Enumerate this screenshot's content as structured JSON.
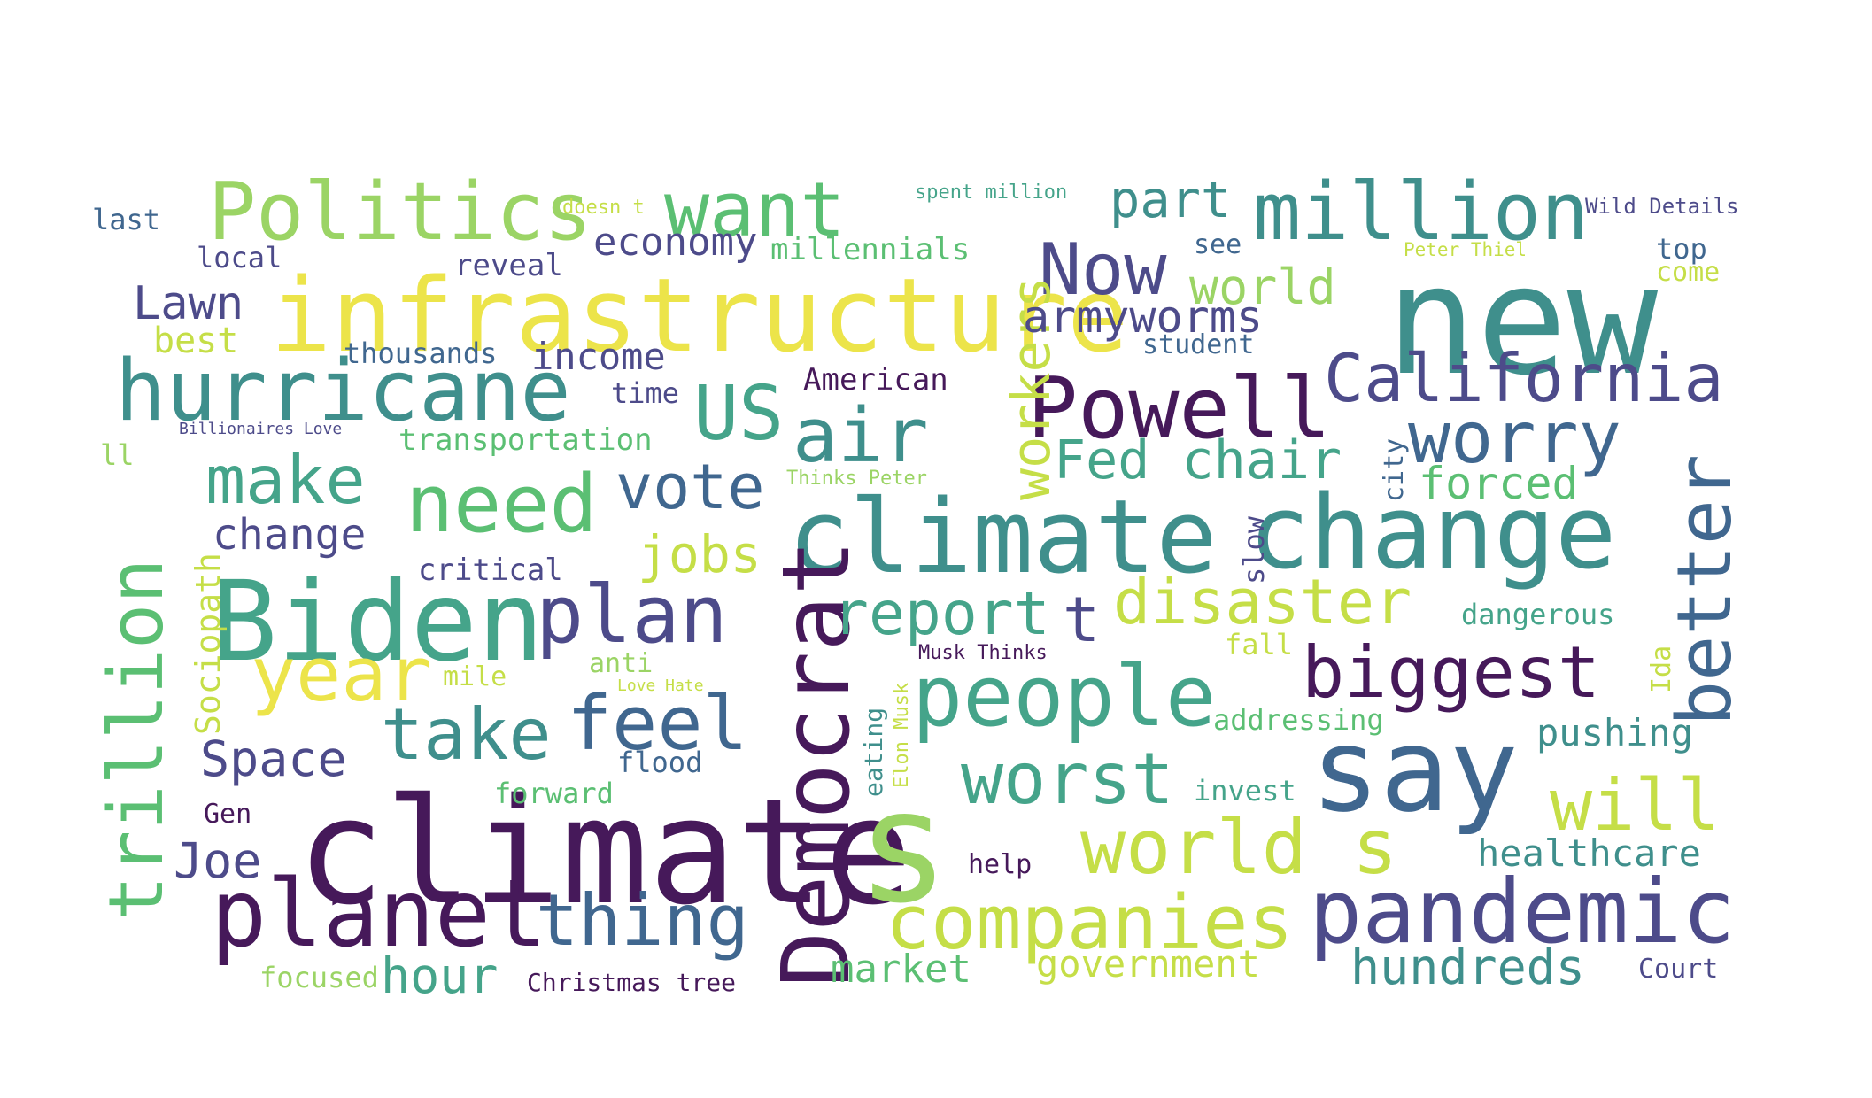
{
  "palette": {
    "purple": "#46195a",
    "indigo": "#4d4b8a",
    "blue": "#40678f",
    "teal": "#3f8f8c",
    "teal_light": "#45a48a",
    "green": "#5bbf73",
    "lime": "#9bd465",
    "yellow_green": "#c5de47",
    "yellow": "#ece44a"
  },
  "words": [
    {
      "text": "climate",
      "color": "purple"
    },
    {
      "text": "s",
      "color": "lime"
    },
    {
      "text": "new",
      "color": "teal"
    },
    {
      "text": "infrastructure",
      "color": "yellow"
    },
    {
      "text": "change",
      "color": "teal"
    },
    {
      "text": "climate",
      "color": "teal"
    },
    {
      "text": "say",
      "color": "blue"
    },
    {
      "text": "Biden",
      "color": "teal_light"
    },
    {
      "text": "Democrat",
      "color": "purple"
    },
    {
      "text": "pandemic",
      "color": "indigo"
    },
    {
      "text": "planet",
      "color": "purple"
    },
    {
      "text": "hurricane",
      "color": "teal"
    },
    {
      "text": "Politics",
      "color": "lime"
    },
    {
      "text": "million",
      "color": "teal"
    },
    {
      "text": "Powell",
      "color": "purple"
    },
    {
      "text": "trillion",
      "color": "green"
    },
    {
      "text": "companies",
      "color": "yellow_green"
    },
    {
      "text": "world s",
      "color": "yellow_green"
    },
    {
      "text": "people",
      "color": "teal_light"
    },
    {
      "text": "California",
      "color": "indigo"
    },
    {
      "text": "plan",
      "color": "indigo"
    },
    {
      "text": "thing",
      "color": "blue"
    },
    {
      "text": "better",
      "color": "blue"
    },
    {
      "text": "worry",
      "color": "blue"
    },
    {
      "text": "biggest",
      "color": "purple"
    },
    {
      "text": "want",
      "color": "green"
    },
    {
      "text": "need",
      "color": "green"
    },
    {
      "text": "year",
      "color": "yellow"
    },
    {
      "text": "feel",
      "color": "blue"
    },
    {
      "text": "worst",
      "color": "teal_light"
    },
    {
      "text": "take",
      "color": "teal"
    },
    {
      "text": "Now",
      "color": "indigo"
    },
    {
      "text": "US",
      "color": "teal_light"
    },
    {
      "text": "air",
      "color": "teal"
    },
    {
      "text": "will",
      "color": "yellow_green"
    },
    {
      "text": "disaster",
      "color": "yellow_green"
    },
    {
      "text": "report",
      "color": "teal_light"
    },
    {
      "text": "workers",
      "color": "yellow_green"
    },
    {
      "text": "vote",
      "color": "blue"
    },
    {
      "text": "make",
      "color": "teal_light"
    },
    {
      "text": "t",
      "color": "indigo"
    },
    {
      "text": "Fed chair",
      "color": "teal_light"
    },
    {
      "text": "part",
      "color": "teal"
    },
    {
      "text": "hundreds",
      "color": "teal"
    },
    {
      "text": "Space",
      "color": "indigo"
    },
    {
      "text": "hour",
      "color": "teal_light"
    },
    {
      "text": "Joe",
      "color": "indigo"
    },
    {
      "text": "Lawn",
      "color": "indigo"
    },
    {
      "text": "world",
      "color": "lime"
    },
    {
      "text": "armyworms",
      "color": "indigo"
    },
    {
      "text": "jobs",
      "color": "yellow_green"
    },
    {
      "text": "forced",
      "color": "green"
    },
    {
      "text": "healthcare",
      "color": "teal"
    },
    {
      "text": "pushing",
      "color": "teal"
    },
    {
      "text": "government",
      "color": "yellow_green"
    },
    {
      "text": "economy",
      "color": "indigo"
    },
    {
      "text": "change",
      "color": "indigo"
    },
    {
      "text": "market",
      "color": "green"
    },
    {
      "text": "income",
      "color": "indigo"
    },
    {
      "text": "Sociopath",
      "color": "yellow_green"
    },
    {
      "text": "best",
      "color": "yellow_green"
    },
    {
      "text": "millennials",
      "color": "green"
    },
    {
      "text": "transportation",
      "color": "green"
    },
    {
      "text": "reveal",
      "color": "indigo"
    },
    {
      "text": "thousands",
      "color": "blue"
    },
    {
      "text": "critical",
      "color": "indigo"
    },
    {
      "text": "American",
      "color": "purple"
    },
    {
      "text": "local",
      "color": "indigo"
    },
    {
      "text": "last",
      "color": "blue"
    },
    {
      "text": "time",
      "color": "indigo"
    },
    {
      "text": "flood",
      "color": "blue"
    },
    {
      "text": "forward",
      "color": "green"
    },
    {
      "text": "focused",
      "color": "lime"
    },
    {
      "text": "Christmas tree",
      "color": "purple"
    },
    {
      "text": "anti",
      "color": "lime"
    },
    {
      "text": "mile",
      "color": "yellow_green"
    },
    {
      "text": "Gen",
      "color": "purple"
    },
    {
      "text": "help",
      "color": "purple"
    },
    {
      "text": "invest",
      "color": "teal_light"
    },
    {
      "text": "addressing",
      "color": "green"
    },
    {
      "text": "dangerous",
      "color": "teal_light"
    },
    {
      "text": "fall",
      "color": "yellow_green"
    },
    {
      "text": "see",
      "color": "blue"
    },
    {
      "text": "student",
      "color": "blue"
    },
    {
      "text": "top",
      "color": "blue"
    },
    {
      "text": "come",
      "color": "yellow_green"
    },
    {
      "text": "Court",
      "color": "indigo"
    },
    {
      "text": "slow",
      "color": "indigo"
    },
    {
      "text": "city",
      "color": "blue"
    },
    {
      "text": "Ida",
      "color": "yellow_green"
    },
    {
      "text": "eating",
      "color": "teal"
    },
    {
      "text": "Elon Musk",
      "color": "yellow_green"
    },
    {
      "text": "Musk Thinks",
      "color": "purple"
    },
    {
      "text": "Thinks Peter",
      "color": "lime"
    },
    {
      "text": "Love Hate",
      "color": "yellow_green"
    },
    {
      "text": "Billionaires Love",
      "color": "indigo"
    },
    {
      "text": "ll",
      "color": "lime"
    },
    {
      "text": "doesn t",
      "color": "yellow_green"
    },
    {
      "text": "spent million",
      "color": "teal_light"
    },
    {
      "text": "Wild Details",
      "color": "indigo"
    },
    {
      "text": "Peter Thiel",
      "color": "yellow_green"
    }
  ]
}
